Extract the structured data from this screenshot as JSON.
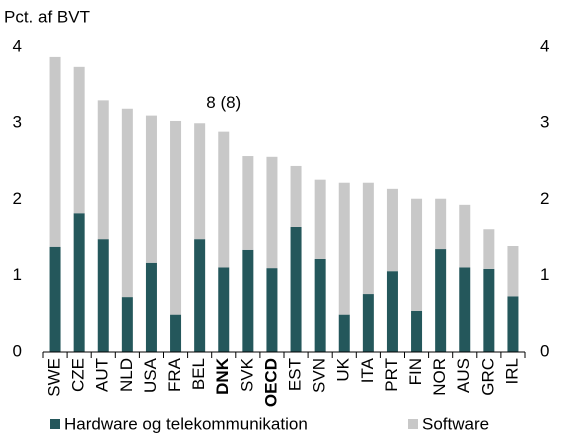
{
  "chart_data": {
    "type": "bar",
    "stacked": true,
    "ylabel": "Pct. af BVT",
    "annotation": "8 (8)",
    "annotation_category": 7,
    "bold_categories": [
      7,
      9
    ],
    "categories": [
      "SWE",
      "CZE",
      "AUT",
      "NLD",
      "USA",
      "FRA",
      "BEL",
      "DNK",
      "SVK",
      "OECD",
      "EST",
      "SVN",
      "UK",
      "ITA",
      "PRT",
      "FIN",
      "NOR",
      "AUS",
      "GRC",
      "IRL"
    ],
    "series": [
      {
        "name": "Hardware og telekommunikation",
        "color": "#24575b",
        "values": [
          1.38,
          1.82,
          1.48,
          0.72,
          1.17,
          0.49,
          1.48,
          1.11,
          1.34,
          1.1,
          1.64,
          1.22,
          0.49,
          0.76,
          1.06,
          0.54,
          1.35,
          1.11,
          1.09,
          0.73
        ]
      },
      {
        "name": "Software",
        "color": "#c8c8c8",
        "values": [
          2.49,
          1.92,
          1.82,
          2.47,
          1.93,
          2.54,
          1.52,
          1.78,
          1.23,
          1.46,
          0.8,
          1.04,
          1.73,
          1.46,
          1.08,
          1.47,
          0.66,
          0.82,
          0.52,
          0.66
        ]
      }
    ],
    "ylim": [
      0,
      4
    ],
    "yticks": [
      0,
      1,
      2,
      3,
      4
    ],
    "y2lim": [
      0,
      4
    ],
    "y2ticks": [
      0,
      1,
      2,
      3,
      4
    ],
    "grid": false
  }
}
